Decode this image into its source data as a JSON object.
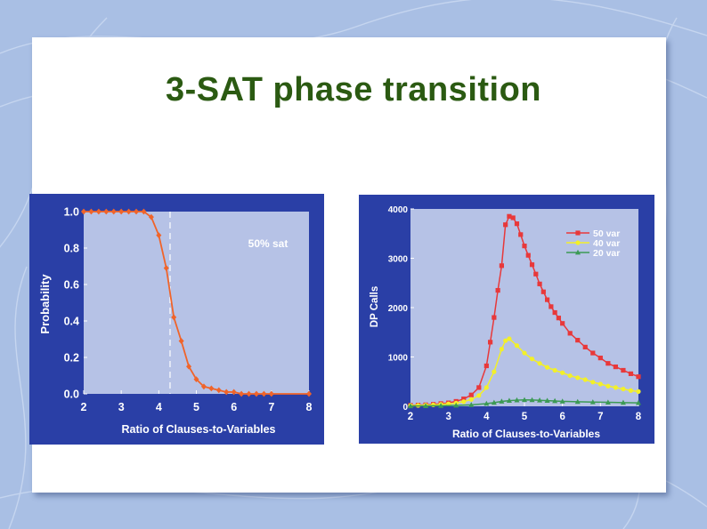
{
  "slide": {
    "title": "3-SAT phase transition"
  },
  "colors": {
    "panel": "#2a3fa6",
    "plot_bg": "#b6c2e6",
    "title": "#2b5a12",
    "prob_line": "#f0642a",
    "red": "#e8383a",
    "yellow": "#f3f028",
    "green": "#3c9a55"
  },
  "chart_data": [
    {
      "type": "line",
      "xlabel": "Ratio of Clauses-to-Variables",
      "ylabel": "Probability",
      "xlim": [
        2,
        8
      ],
      "ylim": [
        0,
        1
      ],
      "xticks": [
        "2",
        "3",
        "4",
        "5",
        "6",
        "7",
        "8"
      ],
      "yticks": [
        "0.0",
        "0.2",
        "0.4",
        "0.6",
        "0.8",
        "1.0"
      ],
      "annotation": "50% sat",
      "marker_x": 4.3,
      "grid": false,
      "series": [
        {
          "x": [
            2.0,
            2.2,
            2.4,
            2.6,
            2.8,
            3.0,
            3.2,
            3.4,
            3.6,
            3.8,
            4.0,
            4.2,
            4.4,
            4.6,
            4.8,
            5.0,
            5.2,
            5.4,
            5.6,
            5.8,
            6.0,
            6.2,
            6.4,
            6.6,
            6.8,
            7.0,
            8.0
          ],
          "y": [
            1.0,
            1.0,
            1.0,
            1.0,
            1.0,
            1.0,
            1.0,
            1.0,
            1.0,
            0.97,
            0.87,
            0.69,
            0.42,
            0.29,
            0.15,
            0.08,
            0.04,
            0.03,
            0.02,
            0.01,
            0.01,
            0.0,
            0.0,
            0.0,
            0.0,
            0.0,
            0.0
          ]
        }
      ]
    },
    {
      "type": "line",
      "xlabel": "Ratio of Clauses-to-Variables",
      "ylabel": "DP Calls",
      "xlim": [
        2,
        8
      ],
      "ylim": [
        0,
        4000
      ],
      "xticks": [
        "2",
        "3",
        "4",
        "5",
        "6",
        "7",
        "8"
      ],
      "yticks": [
        "0",
        "1000",
        "2000",
        "3000",
        "4000"
      ],
      "legend_position": "top-right",
      "grid": false,
      "series": [
        {
          "name": "50 var",
          "marker": "square",
          "x": [
            2.0,
            2.2,
            2.4,
            2.6,
            2.8,
            3.0,
            3.2,
            3.4,
            3.6,
            3.8,
            4.0,
            4.1,
            4.2,
            4.3,
            4.4,
            4.5,
            4.6,
            4.7,
            4.8,
            4.9,
            5.0,
            5.1,
            5.2,
            5.3,
            5.4,
            5.5,
            5.6,
            5.7,
            5.8,
            5.9,
            6.0,
            6.2,
            6.4,
            6.6,
            6.8,
            7.0,
            7.2,
            7.4,
            7.6,
            7.8,
            8.0
          ],
          "y": [
            20,
            25,
            30,
            40,
            55,
            70,
            100,
            150,
            230,
            380,
            820,
            1300,
            1800,
            2350,
            2850,
            3680,
            3850,
            3820,
            3700,
            3480,
            3250,
            3060,
            2870,
            2680,
            2480,
            2320,
            2160,
            2020,
            1900,
            1790,
            1680,
            1480,
            1340,
            1200,
            1080,
            980,
            870,
            800,
            730,
            660,
            600
          ]
        },
        {
          "name": "40 var",
          "marker": "circle",
          "x": [
            2.0,
            2.2,
            2.4,
            2.6,
            2.8,
            3.0,
            3.2,
            3.4,
            3.6,
            3.8,
            4.0,
            4.2,
            4.4,
            4.5,
            4.6,
            4.8,
            5.0,
            5.2,
            5.4,
            5.6,
            5.8,
            6.0,
            6.2,
            6.4,
            6.6,
            6.8,
            7.0,
            7.2,
            7.4,
            7.6,
            7.8,
            8.0
          ],
          "y": [
            15,
            18,
            22,
            28,
            38,
            50,
            65,
            95,
            140,
            220,
            380,
            700,
            1160,
            1330,
            1370,
            1230,
            1080,
            960,
            870,
            790,
            730,
            680,
            620,
            580,
            540,
            490,
            450,
            410,
            380,
            350,
            320,
            300
          ]
        },
        {
          "name": "20 var",
          "marker": "triangle",
          "x": [
            2.0,
            2.4,
            2.8,
            3.2,
            3.6,
            4.0,
            4.2,
            4.4,
            4.6,
            4.8,
            5.0,
            5.2,
            5.4,
            5.6,
            5.8,
            6.0,
            6.4,
            6.8,
            7.2,
            7.6,
            8.0
          ],
          "y": [
            5,
            8,
            12,
            18,
            30,
            55,
            75,
            100,
            115,
            125,
            130,
            128,
            122,
            115,
            108,
            100,
            92,
            85,
            80,
            75,
            70
          ]
        }
      ]
    }
  ]
}
